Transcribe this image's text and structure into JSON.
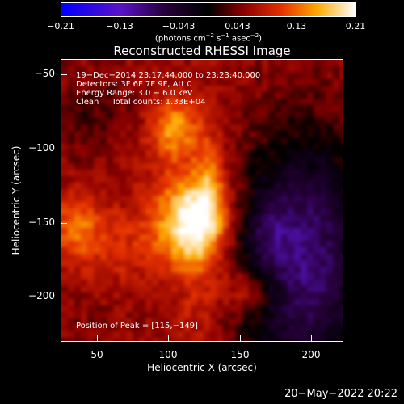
{
  "colorbar": {
    "ticks": [
      "−0.21",
      "−0.13",
      "−0.043",
      "0.043",
      "0.13",
      "0.21"
    ],
    "unit_prefix": "(photons cm",
    "unit_exp1": "−2",
    "unit_mid1": " s",
    "unit_exp2": "−1",
    "unit_mid2": " asec",
    "unit_exp3": "−2",
    "unit_suffix": ")"
  },
  "title": "Reconstructed RHESSI Image",
  "annotations": {
    "time": "19−Dec−2014 23:17:44.000 to 23:23:40.000",
    "detectors": "Detectors: 3F 6F 7F 9F, Att 0",
    "energy": "Energy Range: 3.0 − 6.0 keV",
    "clean": "Clean     Total counts: 1.33E+04",
    "peak": "Position of Peak = [115,−149]"
  },
  "axes": {
    "xlabel": "Heliocentric X (arcsec)",
    "ylabel": "Heliocentric Y (arcsec)",
    "xticks": [
      "50",
      "100",
      "150",
      "200"
    ],
    "yticks": [
      "−50",
      "−100",
      "−150",
      "−200"
    ]
  },
  "footer": "20−May−2022 20:22",
  "colors": {
    "background": "#000000",
    "text": "#ffffff"
  }
}
